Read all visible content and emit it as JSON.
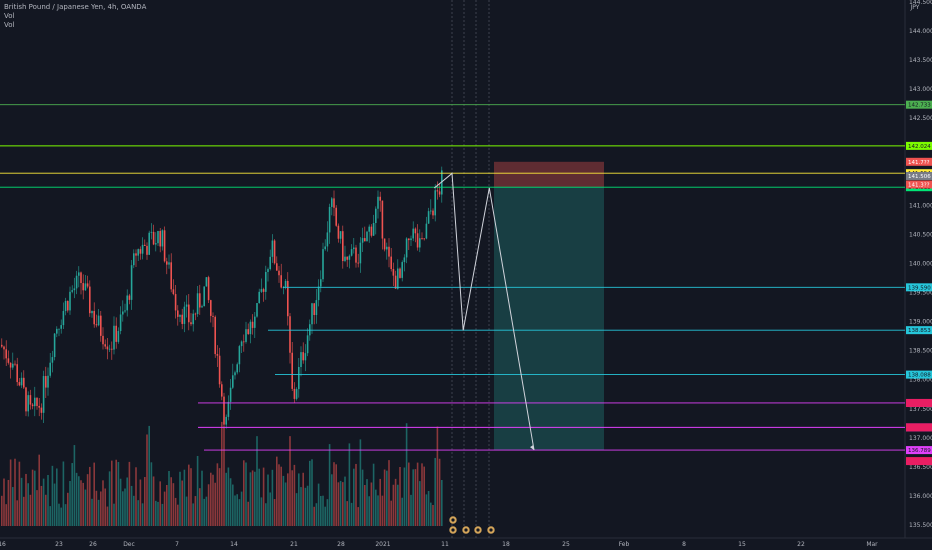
{
  "legend": {
    "symbol": "British Pound / Japanese Yen, 4h, OANDA",
    "vol1": "Vol",
    "vol2": "Vol"
  },
  "currency": "JPY",
  "chart_data": {
    "type": "candlestick",
    "yaxis_ticks": [
      "135.500",
      "136.000",
      "136.500",
      "137.000",
      "137.500",
      "138.000",
      "138.500",
      "139.000",
      "139.500",
      "140.000",
      "140.500",
      "141.000",
      "141.500",
      "142.000",
      "142.500",
      "143.000",
      "143.500",
      "144.000",
      "144.500"
    ],
    "xaxis_ticks": [
      "16",
      "23",
      "26",
      "Dec",
      "7",
      "14",
      "21",
      "28",
      "2021",
      "11",
      "18",
      "25",
      "Feb",
      "8",
      "15",
      "22",
      "Mar"
    ],
    "ylim": [
      135.35,
      144.6
    ],
    "levels": [
      {
        "price": 142.733,
        "label": "142.733",
        "color": "#4caf50",
        "kind": "support-resistance"
      },
      {
        "price": 142.024,
        "label": "142.024",
        "color": "#7cfc00",
        "kind": "support-resistance"
      },
      {
        "price": 141.554,
        "label": "141.554",
        "color": "#ffeb3b",
        "kind": "support-resistance"
      },
      {
        "price": 141.313,
        "label": "141.313",
        "color": "#00e676",
        "kind": "current-price"
      },
      {
        "price": 139.59,
        "label": "139.590",
        "color": "#26c6da",
        "kind": "support-resistance"
      },
      {
        "price": 138.853,
        "label": "138.853",
        "color": "#26c6da",
        "kind": "support-resistance"
      },
      {
        "price": 138.088,
        "label": "138.088",
        "color": "#26c6da",
        "kind": "support-resistance"
      },
      {
        "price": 137.6,
        "label": "",
        "color": "#e040fb",
        "kind": "support-resistance"
      },
      {
        "price": 137.18,
        "label": "",
        "color": "#e040fb",
        "kind": "support-resistance"
      },
      {
        "price": 136.789,
        "label": "136.789",
        "color": "#e040fb",
        "kind": "support-resistance"
      }
    ],
    "price_tags": [
      {
        "price": 141.75,
        "label": "141.7??",
        "color": "#ef5350"
      },
      {
        "price": 141.506,
        "label": "141.506",
        "color": "#787b86"
      },
      {
        "price": 141.36,
        "label": "141.3??",
        "color": "#ef5350"
      },
      {
        "price": 137.6,
        "label": "",
        "color": "#e91e63"
      },
      {
        "price": 137.18,
        "label": "",
        "color": "#e91e63"
      },
      {
        "price": 136.6,
        "label": "",
        "color": "#e91e63"
      }
    ],
    "projection_path": [
      {
        "x": 0.466,
        "y": 141.3
      },
      {
        "x": 0.485,
        "y": 141.55
      },
      {
        "x": 0.497,
        "y": 138.85
      },
      {
        "x": 0.525,
        "y": 141.3
      },
      {
        "x": 0.573,
        "y": 136.789
      }
    ],
    "short_position": {
      "entry": 141.313,
      "stop": 141.75,
      "target": 136.789
    },
    "event_icons": 4
  }
}
